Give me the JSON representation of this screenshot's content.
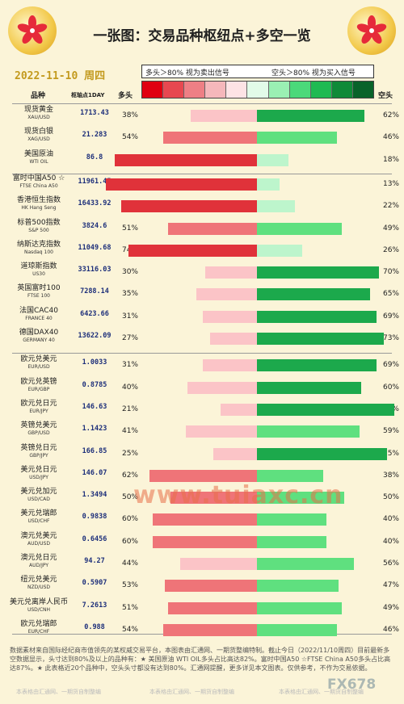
{
  "title": "一张图：交易品种枢纽点+多空一览",
  "date": "2022-11-10 周四",
  "legend": {
    "left": "多头＞80% 视为卖出信号",
    "right": "空头＞80% 视为买入信号"
  },
  "scale_colors": [
    "#e00010",
    "#e74850",
    "#ee7f85",
    "#f5b7bb",
    "#fde3e5",
    "#e2fbe8",
    "#9af0b3",
    "#4bd97a",
    "#1fba52",
    "#0f8a38",
    "#08632a"
  ],
  "headers": {
    "name": "品种",
    "pivot": "枢轴点1DAY",
    "long": "多头",
    "short": "空头"
  },
  "chart_data": {
    "type": "bar",
    "colors": {
      "long_strong": "#e0323a",
      "long_mid": "#ef7478",
      "long_weak": "#fbc4c7",
      "short_strong": "#1ca94c",
      "short_mid": "#5fe07f",
      "short_weak": "#bdf5cc"
    },
    "rows": [
      {
        "zh": "现货黄金",
        "en": "XAU/USD",
        "pivot": "1713.43",
        "long": 38,
        "short": 62
      },
      {
        "zh": "现货白银",
        "en": "XAG/USD",
        "pivot": "21.283",
        "long": 54,
        "short": 46
      },
      {
        "zh": "美国原油",
        "en": "WTI OIL",
        "pivot": "86.8",
        "long": 82,
        "short": 18
      },
      {
        "zh": "富时中国A50 ☆",
        "en": "FTSE China A50",
        "pivot": "11961.45",
        "long": 87,
        "short": 13
      },
      {
        "zh": "香港恒生指数",
        "en": "HK Hang Seng",
        "pivot": "16433.92",
        "long": 78,
        "short": 22
      },
      {
        "zh": "标普500指数",
        "en": "S&P 500",
        "pivot": "3824.6",
        "long": 51,
        "short": 49
      },
      {
        "zh": "纳斯达克指数",
        "en": "Nasdaq 100",
        "pivot": "11049.68",
        "long": 74,
        "short": 26
      },
      {
        "zh": "道琼斯指数",
        "en": "US30",
        "pivot": "33116.03",
        "long": 30,
        "short": 70
      },
      {
        "zh": "英国富时100",
        "en": "FTSE 100",
        "pivot": "7288.14",
        "long": 35,
        "short": 65
      },
      {
        "zh": "法国CAC40",
        "en": "FRANCE 40",
        "pivot": "6423.66",
        "long": 31,
        "short": 69
      },
      {
        "zh": "德国DAX40",
        "en": "GERMANY 40",
        "pivot": "13622.09",
        "long": 27,
        "short": 73
      },
      {
        "zh": "欧元兑美元",
        "en": "EUR/USD",
        "pivot": "1.0033",
        "long": 31,
        "short": 69
      },
      {
        "zh": "欧元兑英镑",
        "en": "EUR/GBP",
        "pivot": "0.8785",
        "long": 40,
        "short": 60
      },
      {
        "zh": "欧元兑日元",
        "en": "EUR/JPY",
        "pivot": "146.63",
        "long": 21,
        "short": 79
      },
      {
        "zh": "英镑兑美元",
        "en": "GBP/USD",
        "pivot": "1.1423",
        "long": 41,
        "short": 59
      },
      {
        "zh": "英镑兑日元",
        "en": "GBP/JPY",
        "pivot": "166.85",
        "long": 25,
        "short": 75
      },
      {
        "zh": "美元兑日元",
        "en": "USD/JPY",
        "pivot": "146.07",
        "long": 62,
        "short": 38
      },
      {
        "zh": "美元兑加元",
        "en": "USD/CAD",
        "pivot": "1.3494",
        "long": 50,
        "short": 50
      },
      {
        "zh": "美元兑瑞郎",
        "en": "USD/CHF",
        "pivot": "0.9838",
        "long": 60,
        "short": 40
      },
      {
        "zh": "澳元兑美元",
        "en": "AUD/USD",
        "pivot": "0.6456",
        "long": 60,
        "short": 40
      },
      {
        "zh": "澳元兑日元",
        "en": "AUD/JPY",
        "pivot": "94.27",
        "long": 44,
        "short": 56
      },
      {
        "zh": "纽元兑美元",
        "en": "NZD/USD",
        "pivot": "0.5907",
        "long": 53,
        "short": 47
      },
      {
        "zh": "美元兑离岸人民币",
        "en": "USD/CNH",
        "pivot": "7.2613",
        "long": 51,
        "short": 49
      },
      {
        "zh": "欧元兑瑞郎",
        "en": "EUR/CHF",
        "pivot": "0.988",
        "long": 54,
        "short": 46
      }
    ]
  },
  "note": "数据素材来自国际经纪商市值领先的某权威交易平台，本图表由汇通网、一期货整编特制。截止今日（2022/11/10周四）目前最新多空数据显示，头寸达到80%及以上的品种有：★ 美国原油 WTI OIL多头占比高达82%。富时中国A50 ☆FTSE China A50多头占比高达87%。★ 此表格近20个品种中，空头头寸都没有达到80%。汇通网提醒，更多详见本文图表。仅供参考，不作为交易依据。",
  "watermark": "www.tuiaxc.cn",
  "watermark2": "FX678",
  "footer_text": "本表格由汇通网、一期货自制整编"
}
